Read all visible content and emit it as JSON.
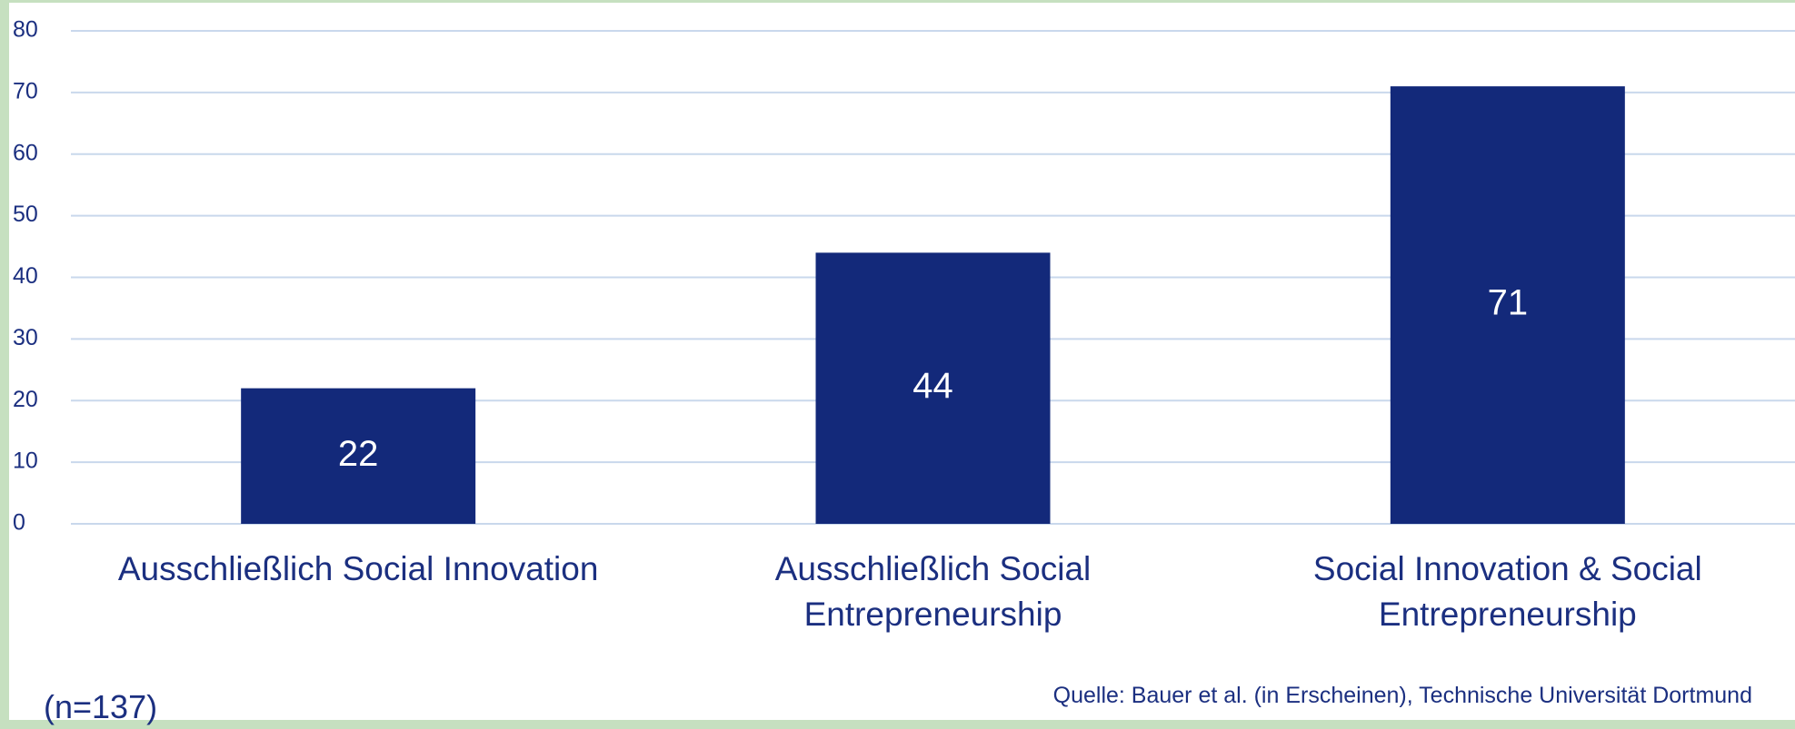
{
  "chart_data": {
    "type": "bar",
    "categories": [
      "Ausschließlich Social Innovation",
      "Ausschließlich Social Entrepreneurship",
      "Social Innovation & Social Entrepreneurship"
    ],
    "values": [
      22,
      44,
      71
    ],
    "color": "#13297a",
    "ylim": [
      0,
      80
    ],
    "yticks": [
      0,
      10,
      20,
      30,
      40,
      50,
      60,
      70,
      80
    ],
    "grid": true,
    "annotations": [
      "(n=137)",
      "Quelle: Bauer et al. (in Erscheinen), Technische Universität Dortmund"
    ]
  }
}
